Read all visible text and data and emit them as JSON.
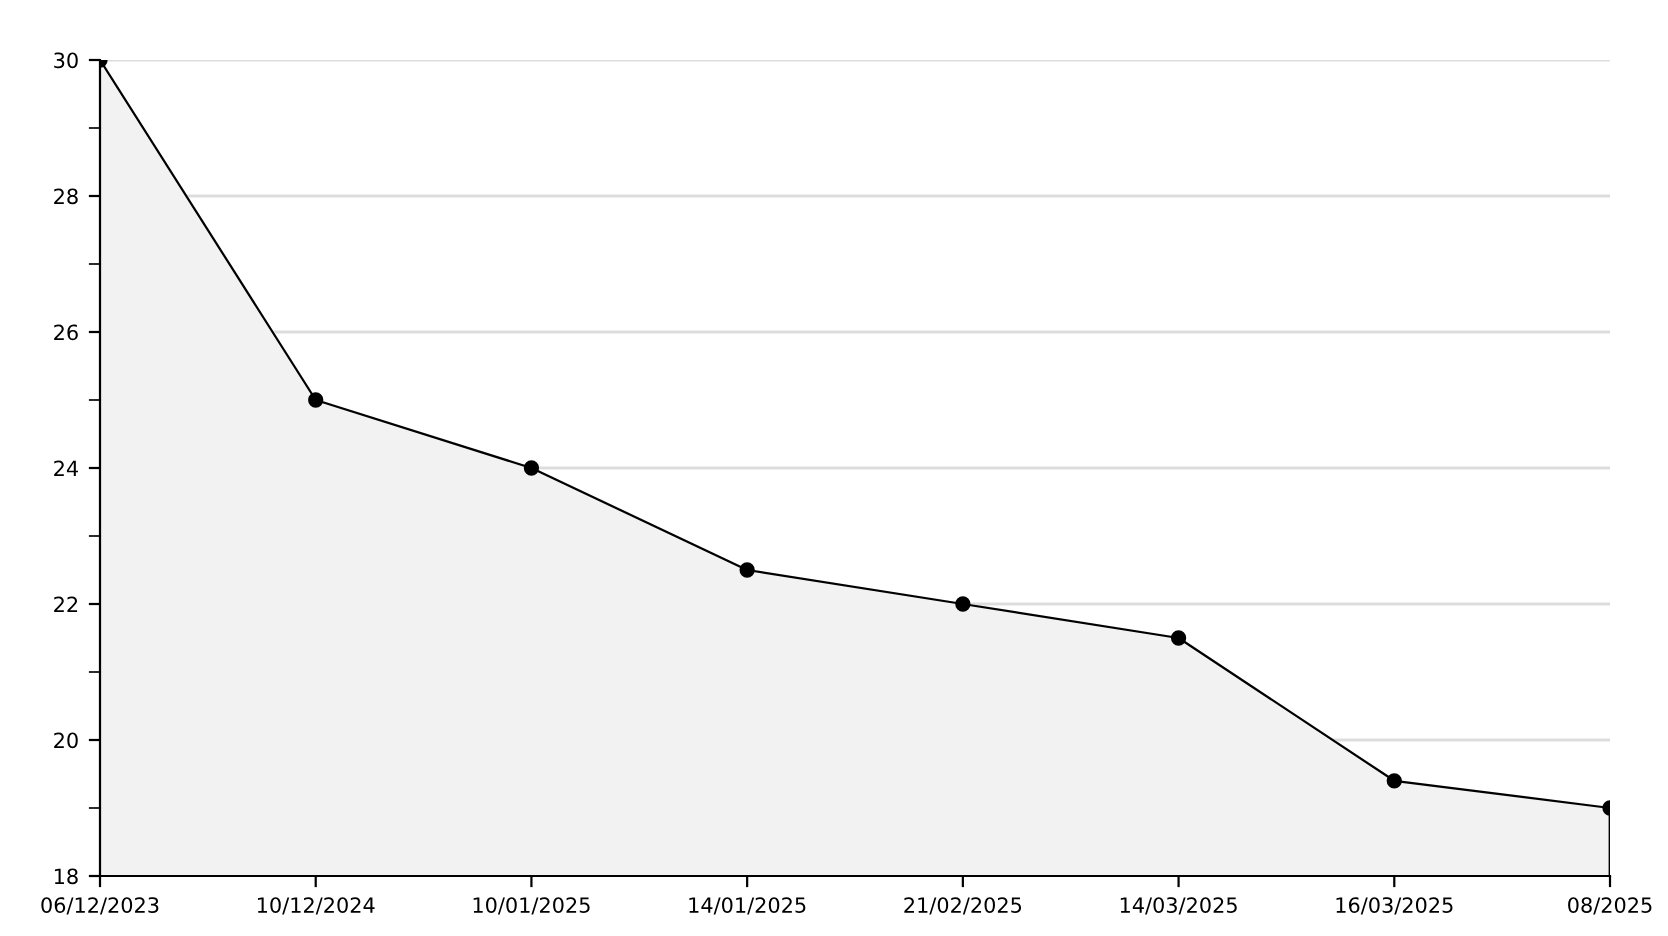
{
  "chart_data": {
    "type": "area",
    "categories": [
      "06/12/2023",
      "10/12/2024",
      "10/01/2025",
      "14/01/2025",
      "21/02/2025",
      "14/03/2025",
      "16/03/2025",
      "08/2025"
    ],
    "series": [
      {
        "color": "#000000",
        "values": [
          30,
          25,
          24,
          22.5,
          22,
          21.5,
          19.4,
          19
        ]
      }
    ],
    "ylim": [
      18,
      30
    ],
    "yticks": [
      18,
      20,
      22,
      24,
      26,
      28,
      30
    ],
    "grid": "y",
    "marker": "circle",
    "line_style": "solid",
    "legend": false
  }
}
